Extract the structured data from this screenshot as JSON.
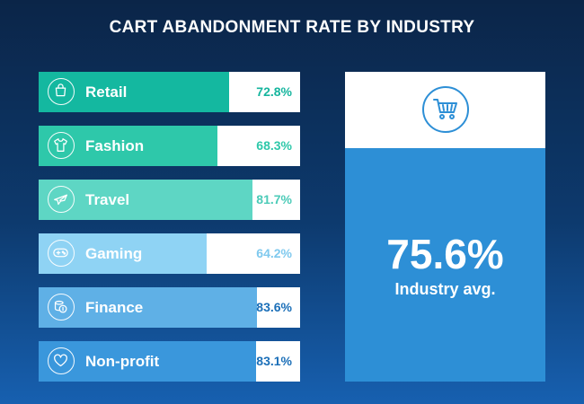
{
  "chart_data": {
    "type": "bar",
    "title": "CART ABANDONMENT RATE BY INDUSTRY",
    "categories": [
      "Retail",
      "Fashion",
      "Travel",
      "Gaming",
      "Finance",
      "Non-profit"
    ],
    "values": [
      72.8,
      68.3,
      81.7,
      64.2,
      83.6,
      83.1
    ],
    "value_labels": [
      "72.8%",
      "68.3%",
      "81.7%",
      "64.2%",
      "83.6%",
      "83.1%"
    ],
    "unit": "%",
    "colors": [
      "#14b8a0",
      "#2ec8aa",
      "#5ed6c4",
      "#8fd3f4",
      "#5fb0e6",
      "#3a97dc"
    ],
    "value_colors": [
      "#16b59e",
      "#2ec8aa",
      "#4ccbb8",
      "#7fc9ee",
      "#1b6fb8",
      "#1b6fb8"
    ],
    "icons": [
      "shopping-bag-icon",
      "tshirt-icon",
      "airplane-icon",
      "gamepad-icon",
      "coins-icon",
      "heart-icon"
    ],
    "summary": {
      "value_label": "75.6%",
      "label": "Industry avg.",
      "icon": "shopping-cart-icon",
      "color": "#2d8fd6"
    }
  }
}
